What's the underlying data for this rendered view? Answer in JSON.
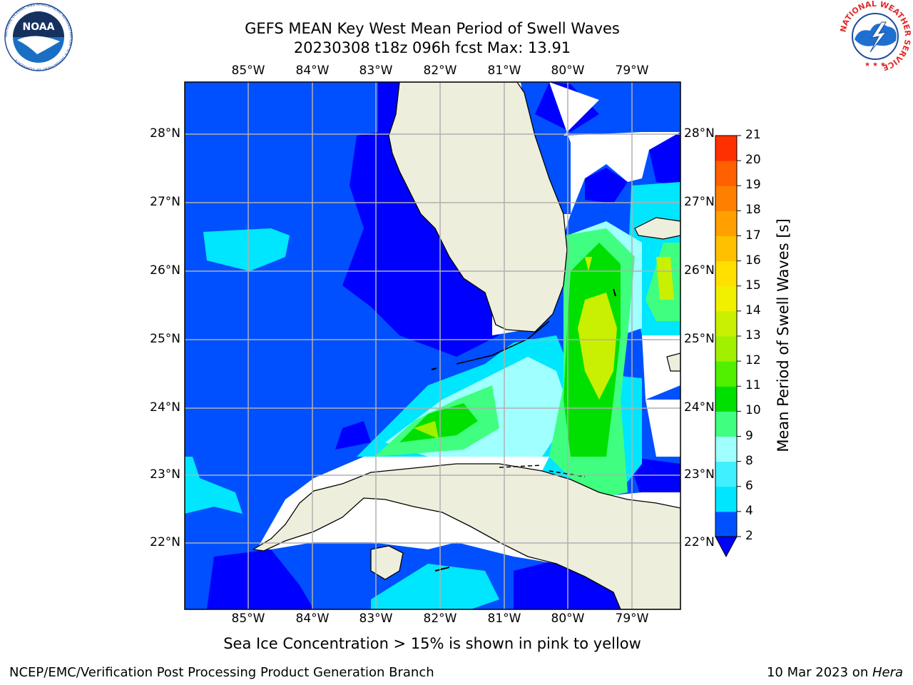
{
  "title": {
    "line1": "GEFS MEAN Key West Mean Period of Swell Waves",
    "line2": "20230308 t18z 096h fcst   Max: 13.91"
  },
  "map": {
    "lon_labels": [
      "85°W",
      "84°W",
      "83°W",
      "82°W",
      "81°W",
      "80°W",
      "79°W"
    ],
    "lat_labels": [
      "28°N",
      "27°N",
      "26°N",
      "25°N",
      "24°N",
      "23°N",
      "22°N"
    ],
    "land_color": "#eeeedc",
    "nodata_color": "#ffffff"
  },
  "colorbar": {
    "label": "Mean Period of Swell Waves [s]",
    "ticks": [
      "2",
      "4",
      "6",
      "8",
      "9",
      "10",
      "11",
      "12",
      "13",
      "14",
      "15",
      "16",
      "17",
      "18",
      "19",
      "20",
      "21"
    ],
    "colors": [
      "#0050ff",
      "#00e6ff",
      "#40f0ff",
      "#a0ffff",
      "#40ff80",
      "#00e000",
      "#50f000",
      "#a0f000",
      "#c8f000",
      "#f0f000",
      "#ffe000",
      "#ffc000",
      "#ffa000",
      "#ff8000",
      "#ff6000",
      "#ff3000"
    ],
    "under_color": "#0000ff"
  },
  "subtitle": "Sea Ice Concentration > 15% is shown in pink to yellow",
  "footer": {
    "left": "NCEP/EMC/Verification Post Processing Product Generation Branch",
    "date": "10 Mar 2023 on ",
    "machine": "Hera"
  },
  "logos": {
    "noaa_text": "NOAA",
    "noaa_ring": "NATIONAL OCEANIC AND ATMOSPHERIC ADMINISTRATION · U.S. DEPARTMENT OF COMMERCE",
    "nws_ring": "NATIONAL WEATHER SERVICE"
  }
}
